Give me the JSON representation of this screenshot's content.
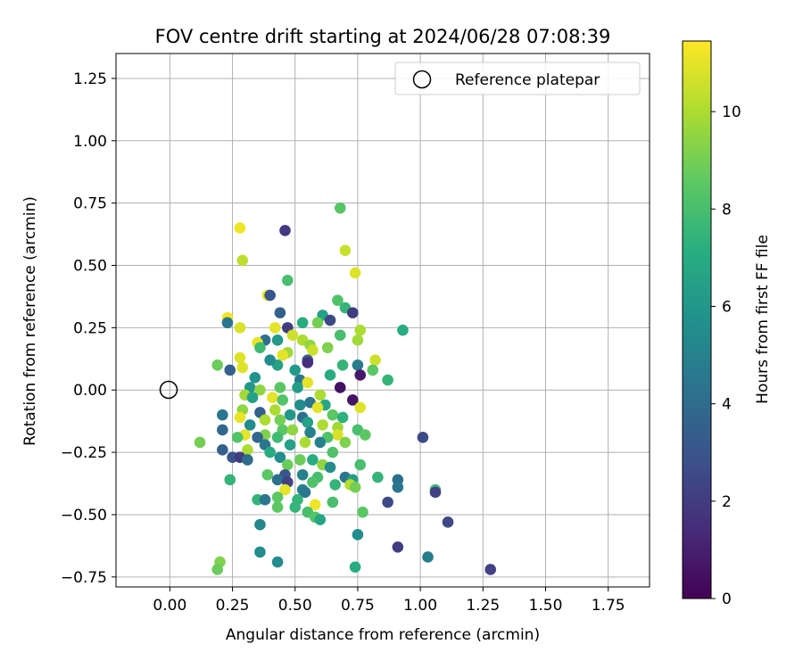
{
  "chart_data": {
    "type": "scatter",
    "title": "FOV centre drift starting at 2024/06/28 07:08:39",
    "xlabel": "Angular distance from reference (arcmin)",
    "ylabel": "Rotation from reference (arcmin)",
    "xlim": [
      -0.215,
      1.915
    ],
    "ylim": [
      -0.79,
      1.35
    ],
    "xticks": [
      0.0,
      0.25,
      0.5,
      0.75,
      1.0,
      1.25,
      1.5,
      1.75
    ],
    "xtick_labels": [
      "0.00",
      "0.25",
      "0.50",
      "0.75",
      "1.00",
      "1.25",
      "1.50",
      "1.75"
    ],
    "yticks": [
      -0.75,
      -0.5,
      -0.25,
      0.0,
      0.25,
      0.5,
      0.75,
      1.0,
      1.25
    ],
    "ytick_labels": [
      "−0.75",
      "−0.50",
      "−0.25",
      "0.00",
      "0.25",
      "0.50",
      "0.75",
      "1.00",
      "1.25"
    ],
    "grid": true,
    "legend": {
      "placement": "top-right",
      "entries": [
        "Reference platepar"
      ]
    },
    "reference_point": {
      "name": "Reference platepar",
      "x": 0.0,
      "y": 0.0
    },
    "colorbar": {
      "label": "Hours from first FF file",
      "range": [
        0,
        11.45
      ],
      "ticks": [
        0,
        2,
        4,
        6,
        8,
        10
      ],
      "tick_labels": [
        "0",
        "2",
        "4",
        "6",
        "8",
        "10"
      ],
      "colormap": "viridis"
    },
    "points": [
      {
        "x": 0.28,
        "y": 0.65,
        "h": 11.2
      },
      {
        "x": 0.46,
        "y": 0.64,
        "h": 1.9
      },
      {
        "x": 0.68,
        "y": 0.73,
        "h": 8.4
      },
      {
        "x": 0.7,
        "y": 0.56,
        "h": 10.5
      },
      {
        "x": 0.29,
        "y": 0.52,
        "h": 10.3
      },
      {
        "x": 0.74,
        "y": 0.47,
        "h": 10.9
      },
      {
        "x": 0.47,
        "y": 0.44,
        "h": 8.0
      },
      {
        "x": 0.39,
        "y": 0.38,
        "h": 11.0
      },
      {
        "x": 0.4,
        "y": 0.38,
        "h": 3.0
      },
      {
        "x": 0.67,
        "y": 0.36,
        "h": 8.2
      },
      {
        "x": 0.7,
        "y": 0.33,
        "h": 7.5
      },
      {
        "x": 0.73,
        "y": 0.31,
        "h": 2.0
      },
      {
        "x": 0.44,
        "y": 0.31,
        "h": 3.5
      },
      {
        "x": 0.23,
        "y": 0.29,
        "h": 11.2
      },
      {
        "x": 0.61,
        "y": 0.3,
        "h": 6.5
      },
      {
        "x": 0.53,
        "y": 0.27,
        "h": 7.0
      },
      {
        "x": 0.64,
        "y": 0.28,
        "h": 2.5
      },
      {
        "x": 0.23,
        "y": 0.27,
        "h": 4.5
      },
      {
        "x": 0.28,
        "y": 0.25,
        "h": 10.8
      },
      {
        "x": 0.47,
        "y": 0.25,
        "h": 2.0
      },
      {
        "x": 0.42,
        "y": 0.25,
        "h": 11.0
      },
      {
        "x": 0.59,
        "y": 0.27,
        "h": 9.0
      },
      {
        "x": 0.76,
        "y": 0.24,
        "h": 10.0
      },
      {
        "x": 0.93,
        "y": 0.24,
        "h": 7.0
      },
      {
        "x": 0.49,
        "y": 0.22,
        "h": 10.6
      },
      {
        "x": 0.68,
        "y": 0.22,
        "h": 8.0
      },
      {
        "x": 0.75,
        "y": 0.2,
        "h": 9.8
      },
      {
        "x": 0.43,
        "y": 0.2,
        "h": 6.2
      },
      {
        "x": 0.38,
        "y": 0.2,
        "h": 4.2
      },
      {
        "x": 0.35,
        "y": 0.19,
        "h": 11.1
      },
      {
        "x": 0.53,
        "y": 0.2,
        "h": 10.0
      },
      {
        "x": 0.56,
        "y": 0.18,
        "h": 9.5
      },
      {
        "x": 0.36,
        "y": 0.17,
        "h": 7.8
      },
      {
        "x": 0.57,
        "y": 0.16,
        "h": 10.6
      },
      {
        "x": 0.63,
        "y": 0.17,
        "h": 9.2
      },
      {
        "x": 0.47,
        "y": 0.15,
        "h": 9.8
      },
      {
        "x": 0.45,
        "y": 0.14,
        "h": 11.0
      },
      {
        "x": 0.28,
        "y": 0.13,
        "h": 10.9
      },
      {
        "x": 0.55,
        "y": 0.12,
        "h": 3.5
      },
      {
        "x": 0.82,
        "y": 0.12,
        "h": 10.6
      },
      {
        "x": 0.43,
        "y": 0.1,
        "h": 6.5
      },
      {
        "x": 0.4,
        "y": 0.12,
        "h": 5.5
      },
      {
        "x": 0.19,
        "y": 0.1,
        "h": 8.8
      },
      {
        "x": 0.29,
        "y": 0.09,
        "h": 10.9
      },
      {
        "x": 0.69,
        "y": 0.1,
        "h": 7.5
      },
      {
        "x": 0.75,
        "y": 0.1,
        "h": 4.8
      },
      {
        "x": 0.24,
        "y": 0.08,
        "h": 3.5
      },
      {
        "x": 0.5,
        "y": 0.08,
        "h": 6.2
      },
      {
        "x": 0.55,
        "y": 0.11,
        "h": 1.5
      },
      {
        "x": 0.81,
        "y": 0.08,
        "h": 8.5
      },
      {
        "x": 0.64,
        "y": 0.06,
        "h": 7.0
      },
      {
        "x": 0.76,
        "y": 0.06,
        "h": 0.8
      },
      {
        "x": 0.34,
        "y": 0.05,
        "h": 5.8
      },
      {
        "x": 0.87,
        "y": 0.04,
        "h": 7.5
      },
      {
        "x": 0.52,
        "y": 0.04,
        "h": 4.6
      },
      {
        "x": 0.44,
        "y": 0.01,
        "h": 8.5
      },
      {
        "x": 0.55,
        "y": 0.03,
        "h": 11.0
      },
      {
        "x": 0.68,
        "y": 0.01,
        "h": 0.5
      },
      {
        "x": 0.32,
        "y": 0.01,
        "h": 6.0
      },
      {
        "x": 0.36,
        "y": 0.0,
        "h": 9.5
      },
      {
        "x": 0.51,
        "y": 0.01,
        "h": 6.3
      },
      {
        "x": 0.6,
        "y": -0.02,
        "h": 10.0
      },
      {
        "x": 0.41,
        "y": -0.03,
        "h": 11.0
      },
      {
        "x": 0.73,
        "y": -0.04,
        "h": 0.6
      },
      {
        "x": 0.3,
        "y": -0.02,
        "h": 9.8
      },
      {
        "x": 0.33,
        "y": -0.03,
        "h": 6.5
      },
      {
        "x": 0.45,
        "y": -0.04,
        "h": 8.3
      },
      {
        "x": 0.52,
        "y": -0.06,
        "h": 5.5
      },
      {
        "x": 0.56,
        "y": -0.05,
        "h": 4.5
      },
      {
        "x": 0.62,
        "y": -0.06,
        "h": 6.8
      },
      {
        "x": 0.76,
        "y": -0.07,
        "h": 10.9
      },
      {
        "x": 0.59,
        "y": -0.07,
        "h": 11.0
      },
      {
        "x": 0.42,
        "y": -0.08,
        "h": 10.0
      },
      {
        "x": 0.36,
        "y": -0.09,
        "h": 3.5
      },
      {
        "x": 0.29,
        "y": -0.08,
        "h": 9.5
      },
      {
        "x": 0.48,
        "y": -0.1,
        "h": 6.0
      },
      {
        "x": 0.21,
        "y": -0.1,
        "h": 4.5
      },
      {
        "x": 0.65,
        "y": -0.1,
        "h": 8.5
      },
      {
        "x": 0.69,
        "y": -0.11,
        "h": 7.3
      },
      {
        "x": 0.28,
        "y": -0.11,
        "h": 11.1
      },
      {
        "x": 0.53,
        "y": -0.11,
        "h": 4.2
      },
      {
        "x": 0.38,
        "y": -0.12,
        "h": 10.0
      },
      {
        "x": 0.44,
        "y": -0.12,
        "h": 9.0
      },
      {
        "x": 0.55,
        "y": -0.13,
        "h": 6.5
      },
      {
        "x": 0.61,
        "y": -0.14,
        "h": 10.0
      },
      {
        "x": 0.67,
        "y": -0.15,
        "h": 9.8
      },
      {
        "x": 0.32,
        "y": -0.14,
        "h": 5.5
      },
      {
        "x": 0.75,
        "y": -0.16,
        "h": 8.0
      },
      {
        "x": 0.21,
        "y": -0.16,
        "h": 3.8
      },
      {
        "x": 0.45,
        "y": -0.16,
        "h": 8.5
      },
      {
        "x": 0.49,
        "y": -0.16,
        "h": 9.5
      },
      {
        "x": 0.56,
        "y": -0.17,
        "h": 5.0
      },
      {
        "x": 0.38,
        "y": -0.18,
        "h": 9.2
      },
      {
        "x": 0.3,
        "y": -0.18,
        "h": 11.0
      },
      {
        "x": 0.78,
        "y": -0.18,
        "h": 8.5
      },
      {
        "x": 0.67,
        "y": -0.18,
        "h": 10.8
      },
      {
        "x": 1.01,
        "y": -0.19,
        "h": 2.5
      },
      {
        "x": 0.27,
        "y": -0.19,
        "h": 8.3
      },
      {
        "x": 0.35,
        "y": -0.19,
        "h": 3.8
      },
      {
        "x": 0.43,
        "y": -0.19,
        "h": 7.8
      },
      {
        "x": 0.63,
        "y": -0.19,
        "h": 8.2
      },
      {
        "x": 0.54,
        "y": -0.21,
        "h": 10.0
      },
      {
        "x": 0.7,
        "y": -0.21,
        "h": 9.2
      },
      {
        "x": 0.12,
        "y": -0.21,
        "h": 9.0
      },
      {
        "x": 0.6,
        "y": -0.21,
        "h": 5.0
      },
      {
        "x": 0.38,
        "y": -0.22,
        "h": 4.5
      },
      {
        "x": 0.48,
        "y": -0.22,
        "h": 6.5
      },
      {
        "x": 0.31,
        "y": -0.24,
        "h": 10.0
      },
      {
        "x": 0.21,
        "y": -0.24,
        "h": 3.5
      },
      {
        "x": 0.4,
        "y": -0.25,
        "h": 7.0
      },
      {
        "x": 0.65,
        "y": -0.25,
        "h": 8.2
      },
      {
        "x": 0.25,
        "y": -0.27,
        "h": 3.0
      },
      {
        "x": 0.28,
        "y": -0.27,
        "h": 2.0
      },
      {
        "x": 0.44,
        "y": -0.27,
        "h": 5.5
      },
      {
        "x": 0.52,
        "y": -0.28,
        "h": 8.8
      },
      {
        "x": 0.57,
        "y": -0.28,
        "h": 7.0
      },
      {
        "x": 0.31,
        "y": -0.28,
        "h": 4.0
      },
      {
        "x": 0.47,
        "y": -0.3,
        "h": 8.8
      },
      {
        "x": 0.61,
        "y": -0.3,
        "h": 9.5
      },
      {
        "x": 0.76,
        "y": -0.3,
        "h": 8.0
      },
      {
        "x": 0.64,
        "y": -0.31,
        "h": 5.5
      },
      {
        "x": 0.39,
        "y": -0.34,
        "h": 8.5
      },
      {
        "x": 0.53,
        "y": -0.34,
        "h": 5.0
      },
      {
        "x": 0.46,
        "y": -0.34,
        "h": 3.0
      },
      {
        "x": 0.59,
        "y": -0.35,
        "h": 8.0
      },
      {
        "x": 0.83,
        "y": -0.35,
        "h": 7.5
      },
      {
        "x": 0.7,
        "y": -0.35,
        "h": 4.5
      },
      {
        "x": 0.43,
        "y": -0.36,
        "h": 4.2
      },
      {
        "x": 0.73,
        "y": -0.36,
        "h": 6.3
      },
      {
        "x": 0.91,
        "y": -0.36,
        "h": 4.2
      },
      {
        "x": 0.24,
        "y": -0.36,
        "h": 7.5
      },
      {
        "x": 0.47,
        "y": -0.37,
        "h": 2.2
      },
      {
        "x": 0.57,
        "y": -0.37,
        "h": 8.2
      },
      {
        "x": 0.66,
        "y": -0.38,
        "h": 7.5
      },
      {
        "x": 0.72,
        "y": -0.38,
        "h": 10.2
      },
      {
        "x": 0.74,
        "y": -0.39,
        "h": 9.0
      },
      {
        "x": 0.91,
        "y": -0.39,
        "h": 4.5
      },
      {
        "x": 0.46,
        "y": -0.4,
        "h": 11.0
      },
      {
        "x": 0.53,
        "y": -0.4,
        "h": 5.0
      },
      {
        "x": 1.06,
        "y": -0.4,
        "h": 7.8
      },
      {
        "x": 0.54,
        "y": -0.41,
        "h": 4.5
      },
      {
        "x": 1.06,
        "y": -0.41,
        "h": 2.2
      },
      {
        "x": 0.35,
        "y": -0.44,
        "h": 7.5
      },
      {
        "x": 0.38,
        "y": -0.44,
        "h": 4.5
      },
      {
        "x": 0.43,
        "y": -0.43,
        "h": 8.5
      },
      {
        "x": 0.51,
        "y": -0.44,
        "h": 7.5
      },
      {
        "x": 0.65,
        "y": -0.45,
        "h": 8.0
      },
      {
        "x": 0.87,
        "y": -0.45,
        "h": 2.5
      },
      {
        "x": 0.43,
        "y": -0.47,
        "h": 8.5
      },
      {
        "x": 0.5,
        "y": -0.47,
        "h": 7.5
      },
      {
        "x": 0.58,
        "y": -0.46,
        "h": 11.2
      },
      {
        "x": 0.55,
        "y": -0.49,
        "h": 8.0
      },
      {
        "x": 0.77,
        "y": -0.49,
        "h": 8.5
      },
      {
        "x": 0.58,
        "y": -0.51,
        "h": 8.3
      },
      {
        "x": 0.6,
        "y": -0.52,
        "h": 6.8
      },
      {
        "x": 1.11,
        "y": -0.53,
        "h": 2.5
      },
      {
        "x": 0.36,
        "y": -0.54,
        "h": 5.2
      },
      {
        "x": 0.75,
        "y": -0.58,
        "h": 5.5
      },
      {
        "x": 0.91,
        "y": -0.63,
        "h": 2.0
      },
      {
        "x": 0.36,
        "y": -0.65,
        "h": 5.5
      },
      {
        "x": 1.03,
        "y": -0.67,
        "h": 4.8
      },
      {
        "x": 0.43,
        "y": -0.69,
        "h": 5.5
      },
      {
        "x": 0.2,
        "y": -0.69,
        "h": 9.2
      },
      {
        "x": 0.19,
        "y": -0.72,
        "h": 8.8
      },
      {
        "x": 0.74,
        "y": -0.71,
        "h": 7.0
      },
      {
        "x": 1.28,
        "y": -0.72,
        "h": 2.2
      }
    ]
  }
}
